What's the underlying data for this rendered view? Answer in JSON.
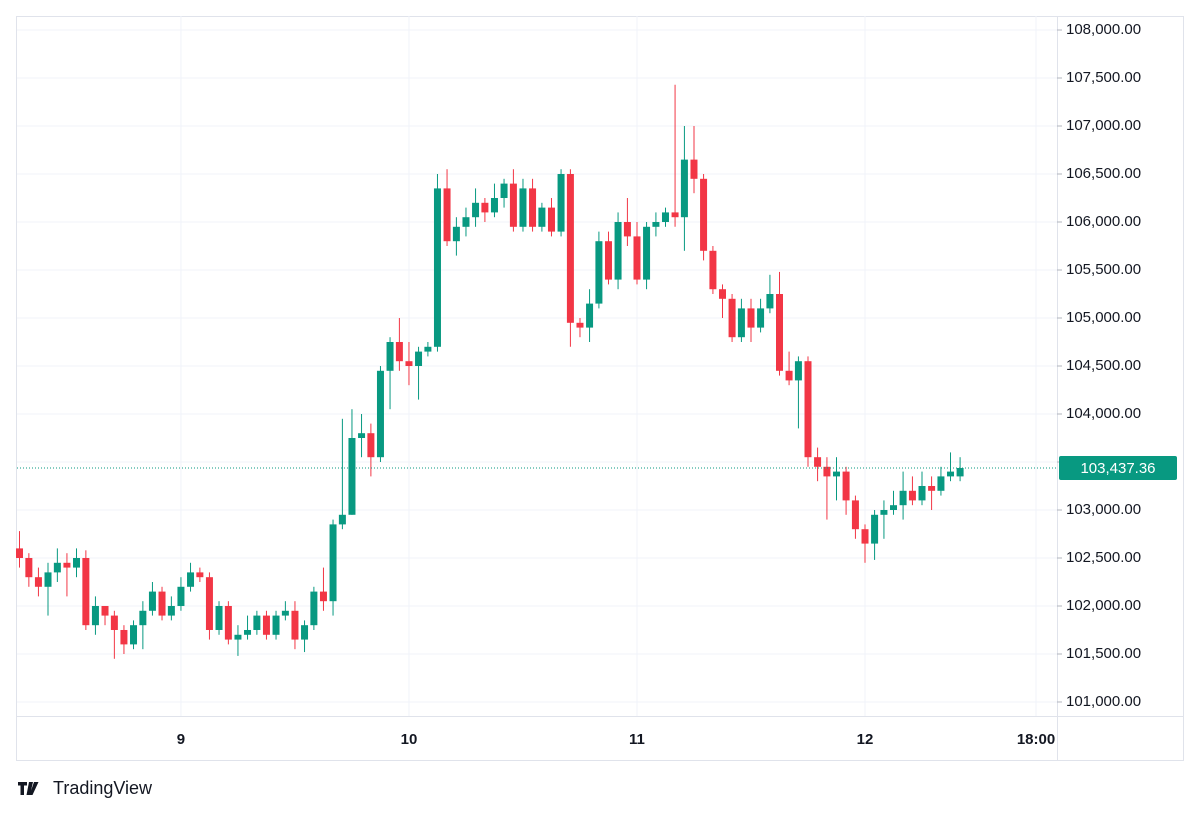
{
  "chart_data": {
    "type": "candlestick",
    "brand": "TradingView",
    "x": [
      8.292,
      8.333,
      8.375,
      8.417,
      8.458,
      8.5,
      8.542,
      8.583,
      8.625,
      8.667,
      8.708,
      8.75,
      8.792,
      8.833,
      8.875,
      8.917,
      8.958,
      9,
      9.042,
      9.083,
      9.125,
      9.167,
      9.208,
      9.25,
      9.292,
      9.333,
      9.375,
      9.417,
      9.458,
      9.5,
      9.542,
      9.583,
      9.625,
      9.667,
      9.708,
      9.75,
      9.792,
      9.833,
      9.875,
      9.917,
      9.958,
      10,
      10.042,
      10.083,
      10.125,
      10.167,
      10.208,
      10.25,
      10.292,
      10.333,
      10.375,
      10.417,
      10.458,
      10.5,
      10.542,
      10.583,
      10.625,
      10.667,
      10.708,
      10.75,
      10.792,
      10.833,
      10.875,
      10.917,
      10.958,
      11,
      11.042,
      11.083,
      11.125,
      11.167,
      11.208,
      11.25,
      11.292,
      11.333,
      11.375,
      11.417,
      11.458,
      11.5,
      11.542,
      11.583,
      11.625,
      11.667,
      11.708,
      11.75,
      11.792,
      11.833,
      11.875,
      11.917,
      11.958,
      12,
      12.042,
      12.083,
      12.125,
      12.167,
      12.208,
      12.25,
      12.292,
      12.333,
      12.375,
      12.417
    ],
    "open": [
      102600,
      102500,
      102300,
      102200,
      102350,
      102450,
      102400,
      102500,
      101800,
      102000,
      101900,
      101750,
      101600,
      101800,
      101950,
      102150,
      101900,
      102000,
      102200,
      102350,
      102300,
      101750,
      102000,
      101650,
      101700,
      101750,
      101900,
      101700,
      101900,
      101950,
      101650,
      101800,
      102150,
      102050,
      102850,
      102950,
      103750,
      103800,
      103550,
      104450,
      104750,
      104550,
      104500,
      104650,
      104700,
      106350,
      105800,
      105950,
      106050,
      106200,
      106100,
      106250,
      106400,
      105950,
      106350,
      105950,
      106150,
      105900,
      106500,
      104950,
      104900,
      105150,
      105800,
      105400,
      106000,
      105850,
      105400,
      105950,
      106000,
      106100,
      106050,
      106650,
      106450,
      105700,
      105300,
      105200,
      104800,
      105100,
      104900,
      105100,
      105250,
      104450,
      104350,
      104550,
      103550,
      103450,
      103350,
      103400,
      103100,
      102800,
      102650,
      102950,
      103000,
      103050,
      103200,
      103100,
      103250,
      103200,
      103350,
      103350
    ],
    "high": [
      102780,
      102550,
      102400,
      102450,
      102600,
      102550,
      102600,
      102580,
      102100,
      102000,
      101950,
      101800,
      101850,
      102050,
      102250,
      102200,
      102100,
      102300,
      102450,
      102400,
      102350,
      102050,
      102050,
      101800,
      101900,
      101950,
      101950,
      101950,
      102050,
      102050,
      101850,
      102200,
      102400,
      102900,
      103950,
      104050,
      104000,
      103900,
      104500,
      104800,
      105000,
      104750,
      104700,
      104750,
      106500,
      106550,
      106050,
      106150,
      106350,
      106250,
      106400,
      106450,
      106550,
      106450,
      106450,
      106200,
      106250,
      106550,
      106550,
      105000,
      105300,
      105900,
      105900,
      106100,
      106250,
      106000,
      106000,
      106100,
      106150,
      107430,
      107000,
      107000,
      106500,
      105750,
      105350,
      105250,
      105200,
      105200,
      105200,
      105450,
      105480,
      104650,
      104600,
      104600,
      103650,
      103550,
      103550,
      103450,
      103150,
      102850,
      103000,
      103100,
      103200,
      103400,
      103350,
      103400,
      103350,
      103450,
      103600,
      103550
    ],
    "low": [
      102400,
      102200,
      102100,
      101900,
      102250,
      102100,
      102300,
      101750,
      101700,
      101800,
      101450,
      101500,
      101550,
      101550,
      101900,
      101850,
      101850,
      101950,
      102150,
      102250,
      101650,
      101700,
      101600,
      101480,
      101650,
      101700,
      101650,
      101650,
      101850,
      101550,
      101520,
      101750,
      101950,
      101900,
      102800,
      102950,
      103550,
      103350,
      103500,
      104050,
      104450,
      104300,
      104150,
      104600,
      104650,
      105750,
      105650,
      105850,
      105950,
      106000,
      106050,
      106150,
      105900,
      105900,
      105900,
      105900,
      105850,
      105850,
      104700,
      104800,
      104750,
      105100,
      105350,
      105300,
      105750,
      105350,
      105300,
      105850,
      105950,
      105950,
      105700,
      106300,
      105600,
      105250,
      105000,
      104750,
      104750,
      104750,
      104850,
      105050,
      104400,
      104300,
      103850,
      103450,
      103300,
      102900,
      103100,
      102950,
      102700,
      102450,
      102480,
      102700,
      102950,
      102900,
      103050,
      103050,
      103000,
      103150,
      103300,
      103300
    ],
    "close": [
      102500,
      102300,
      102200,
      102350,
      102450,
      102400,
      102500,
      101800,
      102000,
      101900,
      101750,
      101600,
      101800,
      101950,
      102150,
      101900,
      102000,
      102200,
      102350,
      102300,
      101750,
      102000,
      101650,
      101700,
      101750,
      101900,
      101700,
      101900,
      101950,
      101650,
      101800,
      102150,
      102050,
      102850,
      102950,
      103750,
      103800,
      103550,
      104450,
      104750,
      104550,
      104500,
      104650,
      104700,
      106350,
      105800,
      105950,
      106050,
      106200,
      106100,
      106250,
      106400,
      105950,
      106350,
      105950,
      106150,
      105900,
      106500,
      104950,
      104900,
      105150,
      105800,
      105400,
      106000,
      105850,
      105400,
      105950,
      106000,
      106100,
      106050,
      106650,
      106450,
      105700,
      105300,
      105200,
      104800,
      105100,
      104900,
      105100,
      105250,
      104450,
      104350,
      104550,
      103550,
      103450,
      103350,
      103400,
      103100,
      102800,
      102650,
      102950,
      103000,
      103050,
      103200,
      103100,
      103250,
      103200,
      103350,
      103400,
      103437.36
    ],
    "last_price_label": "103,437.36",
    "up_color": "#089981",
    "down_color": "#f23645",
    "xlim": [
      8.281,
      12.842
    ],
    "xticks": [
      9,
      10,
      11,
      12,
      {
        "value": 12.75,
        "label": "18:00"
      }
    ],
    "ylim": [
      100854,
      108146
    ],
    "yticks": [
      {
        "value": 101000,
        "label": "101,000.00"
      },
      {
        "value": 101500,
        "label": "101,500.00"
      },
      {
        "value": 102000,
        "label": "102,000.00"
      },
      {
        "value": 102500,
        "label": "102,500.00"
      },
      {
        "value": 103000,
        "label": "103,000.00"
      },
      {
        "value": 103500,
        "label": "103,500.00"
      },
      {
        "value": 104000,
        "label": "104,000.00"
      },
      {
        "value": 104500,
        "label": "104,500.00"
      },
      {
        "value": 105000,
        "label": "105,000.00"
      },
      {
        "value": 105500,
        "label": "105,500.00"
      },
      {
        "value": 106000,
        "label": "106,000.00"
      },
      {
        "value": 106500,
        "label": "106,500.00"
      },
      {
        "value": 107000,
        "label": "107,000.00"
      },
      {
        "value": 107500,
        "label": "107,500.00"
      },
      {
        "value": 108000,
        "label": "108,000.00"
      }
    ],
    "grid": true
  }
}
